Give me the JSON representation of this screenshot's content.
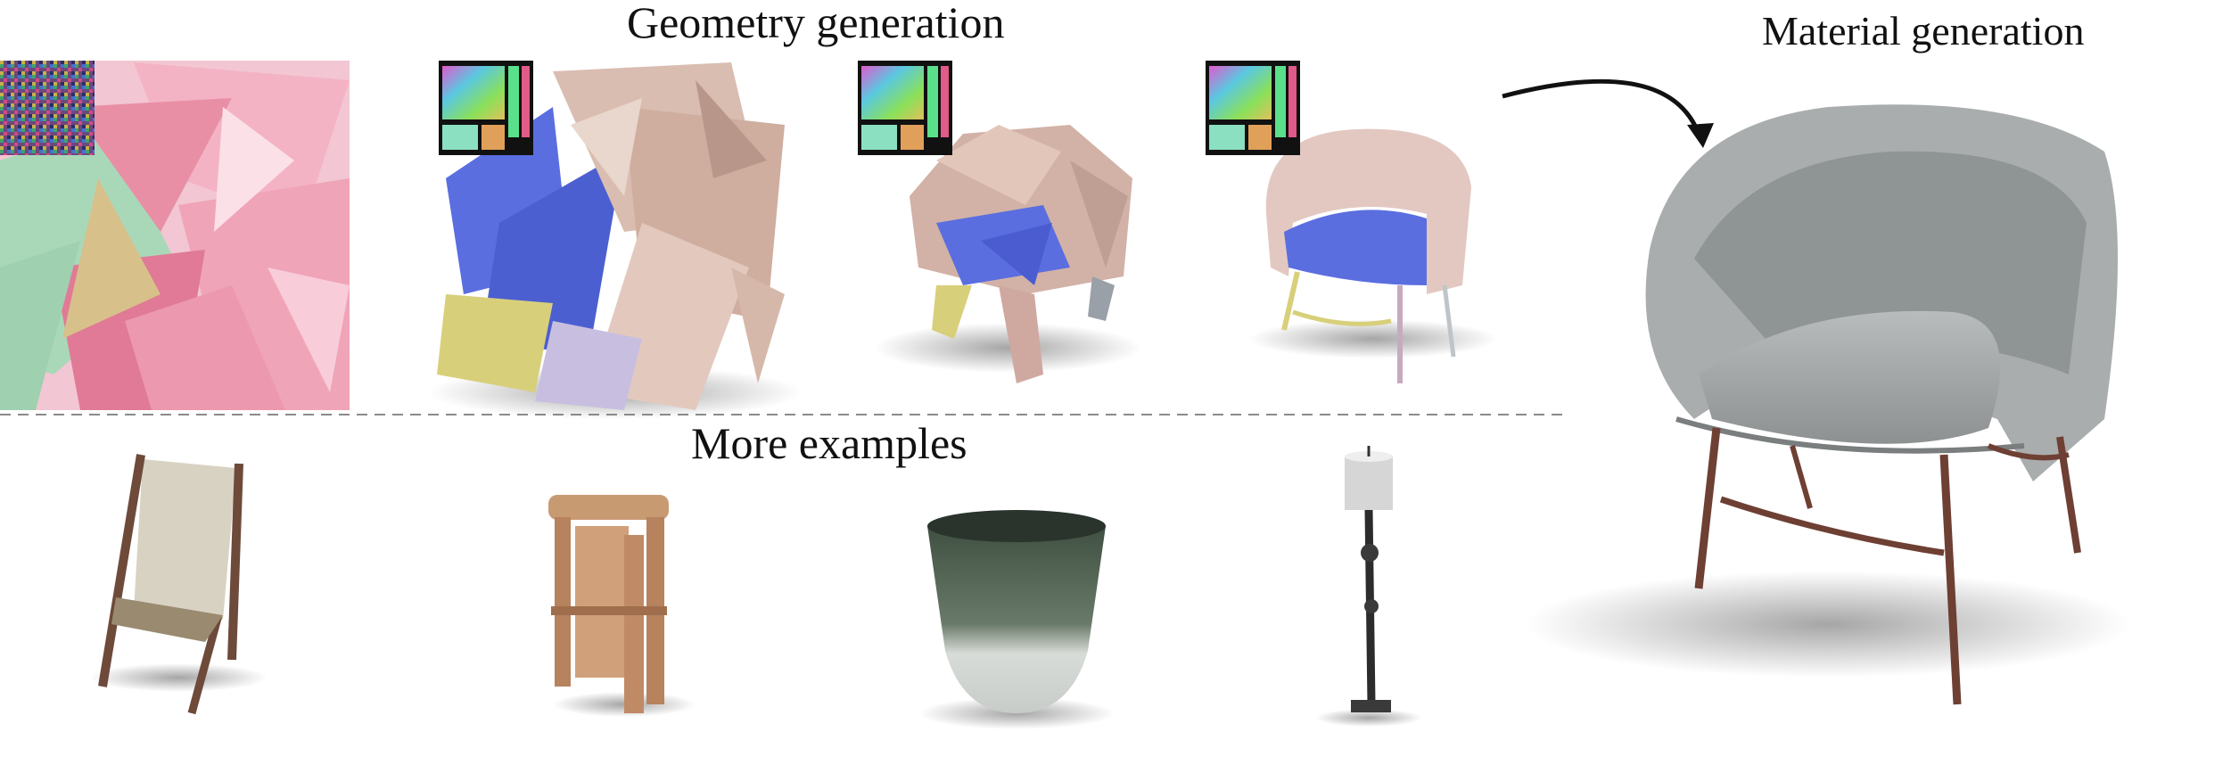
{
  "labels": {
    "geometry_generation": "Geometry generation",
    "material_generation": "Material generation",
    "more_examples": "More examples"
  },
  "colors": {
    "pink_part": "#e88fa6",
    "beige_part": "#d9bdb0",
    "blue_part": "#5a6ee0",
    "yellow_part": "#d8cf7a",
    "green_part": "#a9d8b8",
    "gray_chair": "#9ea2a2",
    "wood_legs": "#6e3f33",
    "divider": "#8a8a8a"
  },
  "icons": [
    "noise-texture-icon",
    "uv-atlas-icon",
    "curved-arrow-icon"
  ]
}
